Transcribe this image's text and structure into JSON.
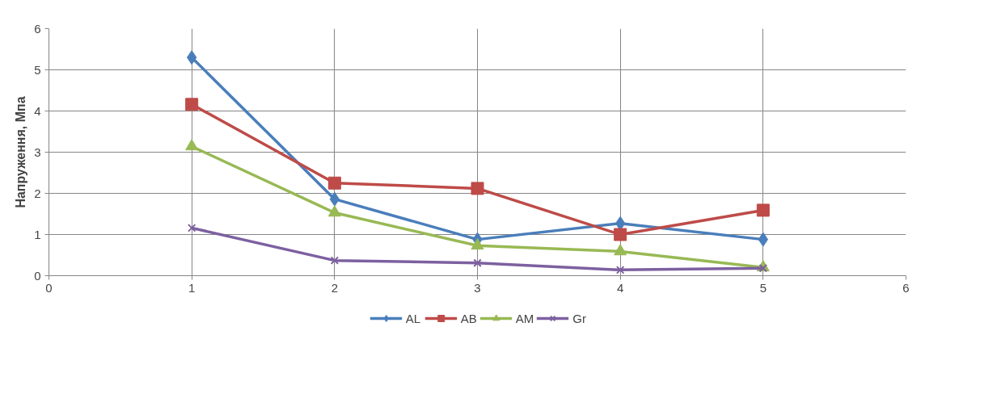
{
  "chart_data": {
    "type": "line",
    "ylabel": "Напруження, Мпа",
    "x": [
      1,
      2,
      3,
      4,
      5
    ],
    "series": [
      {
        "name": "AL",
        "color": "#4a7ebb",
        "marker": "diamond",
        "values": [
          5.3,
          1.86,
          0.88,
          1.27,
          0.88
        ]
      },
      {
        "name": "AB",
        "color": "#be4b48",
        "marker": "square",
        "values": [
          4.16,
          2.25,
          2.12,
          1.0,
          1.59
        ]
      },
      {
        "name": "AM",
        "color": "#98b954",
        "marker": "triangle",
        "values": [
          3.14,
          1.53,
          0.73,
          0.59,
          0.2
        ]
      },
      {
        "name": "Gr",
        "color": "#7d60a0",
        "marker": "cross",
        "values": [
          1.16,
          0.37,
          0.31,
          0.14,
          0.18
        ]
      }
    ],
    "xlim": [
      0,
      6
    ],
    "xticks": [
      0,
      1,
      2,
      3,
      4,
      5,
      6
    ],
    "ylim": [
      0,
      6
    ],
    "yticks": [
      0,
      1,
      2,
      3,
      4,
      5,
      6
    ],
    "grid": true,
    "legend": "bottom",
    "line_style": "solid"
  }
}
